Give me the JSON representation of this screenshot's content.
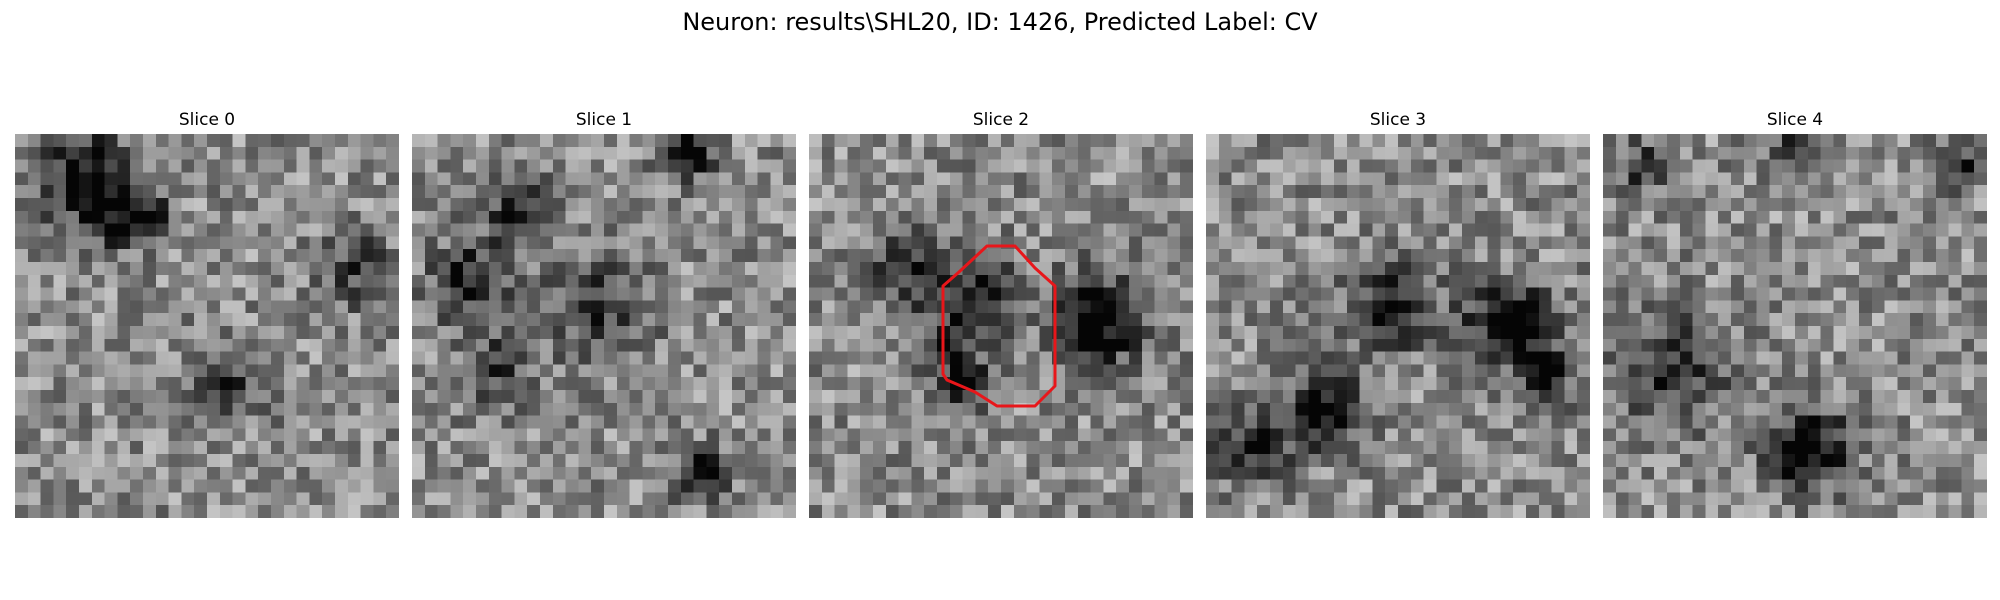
{
  "figure": {
    "title": "Neuron: results\\SHL20, ID: 1426, Predicted Label: CV"
  },
  "panels": [
    {
      "title": "Slice 0",
      "has_contour": false
    },
    {
      "title": "Slice 1",
      "has_contour": false
    },
    {
      "title": "Slice 2",
      "has_contour": true
    },
    {
      "title": "Slice 3",
      "has_contour": false
    },
    {
      "title": "Slice 4",
      "has_contour": false
    }
  ],
  "image_grid": {
    "rows": 30,
    "cols": 30,
    "colormap": "grayscale"
  },
  "contour": {
    "color": "#e8161a"
  }
}
